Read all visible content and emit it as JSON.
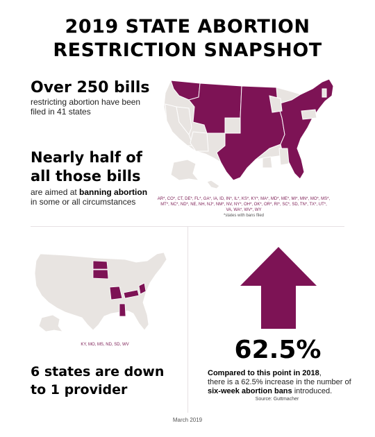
{
  "title": {
    "line1": "2019 STATE ABORTION",
    "line2": "RESTRICTION SNAPSHOT"
  },
  "stat_bills": {
    "headline": "Over 250 bills",
    "subtext": "restricting abortion have been filed in 41 states"
  },
  "stat_bans": {
    "headline_line1": "Nearly half of",
    "headline_line2": "all those bills",
    "sub_prefix": "are aimed at ",
    "sub_bold": "banning abortion",
    "sub_suffix": "in some or all circumstances"
  },
  "map_bills": {
    "states_list": "AR*, CO*, CT, DE*, FL*, GA*, IA, ID, IN*, IL*, KS*, KY*, MA*, MD*, ME*, MI*, MN*, MO*, MS*, MT*, NC*, ND*, NE, NH, NJ*, NM*, NV, NY*, OH*, OK*, OR*, RI*, SC*, SD, TN*, TX*, UT*, VA, WA*, WV*, WY",
    "note": "*states with bans filed"
  },
  "stat_providers": {
    "headline_line1": "6 states are down",
    "headline_line2": "to 1 provider",
    "states_list": "KY, MO, MS, ND, SD, WV"
  },
  "stat_increase": {
    "percent": "62.5%",
    "bold_prefix": "Compared to this point in 2018",
    "after_prefix": ",",
    "line2": "there is a 62.5% increase in the number of",
    "bold_line3": "six-week abortion bans",
    "line3_suffix": " introduced.",
    "source": "Source: Guttmacher"
  },
  "footer": "March 2019",
  "colors": {
    "accent": "#7d1355",
    "map_gray": "#e8e4e1",
    "divider": "#e6e0e3"
  }
}
